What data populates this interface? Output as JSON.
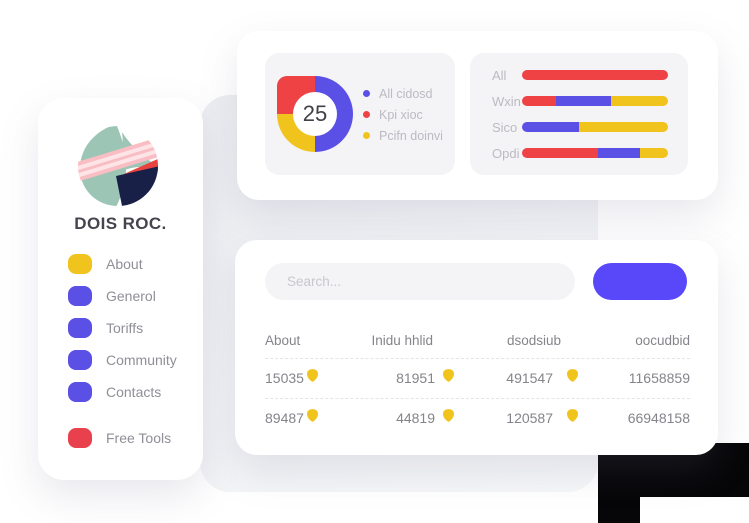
{
  "colors": {
    "red": "#ee4245",
    "yellow": "#f0c41c",
    "purple": "#5b50e5",
    "button_blue": "#5848fa",
    "navy": "#192048",
    "teal": "#9cc5b5",
    "pink": "#f9bec4",
    "pink_light": "#fde5e7"
  },
  "brand": {
    "name": "DOIS ROC."
  },
  "sidebar": {
    "items": [
      {
        "label": "About",
        "color": "#f0c41c"
      },
      {
        "label": "Generol",
        "color": "#5b50e5"
      },
      {
        "label": "Toriffs",
        "color": "#5b50e5"
      },
      {
        "label": "Community",
        "color": "#5b50e5"
      },
      {
        "label": "Contacts",
        "color": "#5b50e5"
      },
      {
        "label": "Free Tools",
        "color": "#e8414d"
      }
    ]
  },
  "search": {
    "placeholder": "Search...",
    "button_label": ""
  },
  "table": {
    "headers": [
      "About",
      "Inidu hhlid",
      "dsodsiub",
      "oocudbid"
    ],
    "rows": [
      {
        "c1": "15035",
        "c2": "81951",
        "c3": "491547",
        "c4": "11658859"
      },
      {
        "c1": "89487",
        "c2": "44819",
        "c3": "120587",
        "c4": "66948158"
      }
    ]
  },
  "chart_data": [
    {
      "type": "pie",
      "subtype": "donut",
      "center_label": "25",
      "labels": [
        "All cidosd",
        "Kpi xioc",
        "Pcifn doinvi"
      ],
      "values": [
        50,
        25,
        25
      ],
      "colors": [
        "#5b50e5",
        "#ee4245",
        "#f0c41c"
      ],
      "order_from_top_clockwise": [
        "#5b50e5",
        "#f0c41c",
        "#ee4245"
      ],
      "legend_position": "right"
    },
    {
      "type": "bar",
      "orientation": "horizontal",
      "stacked": true,
      "categories": [
        "All",
        "Wxin",
        "Sico",
        "Opdi"
      ],
      "series": [
        {
          "name": "red",
          "color": "#ee4245",
          "values": [
            100,
            23,
            0,
            52
          ]
        },
        {
          "name": "purple",
          "color": "#5b50e5",
          "values": [
            0,
            38,
            39,
            29
          ]
        },
        {
          "name": "yellow",
          "color": "#f0c41c",
          "values": [
            0,
            39,
            61,
            19
          ]
        }
      ],
      "xlim": [
        0,
        100
      ],
      "grid": false
    }
  ]
}
